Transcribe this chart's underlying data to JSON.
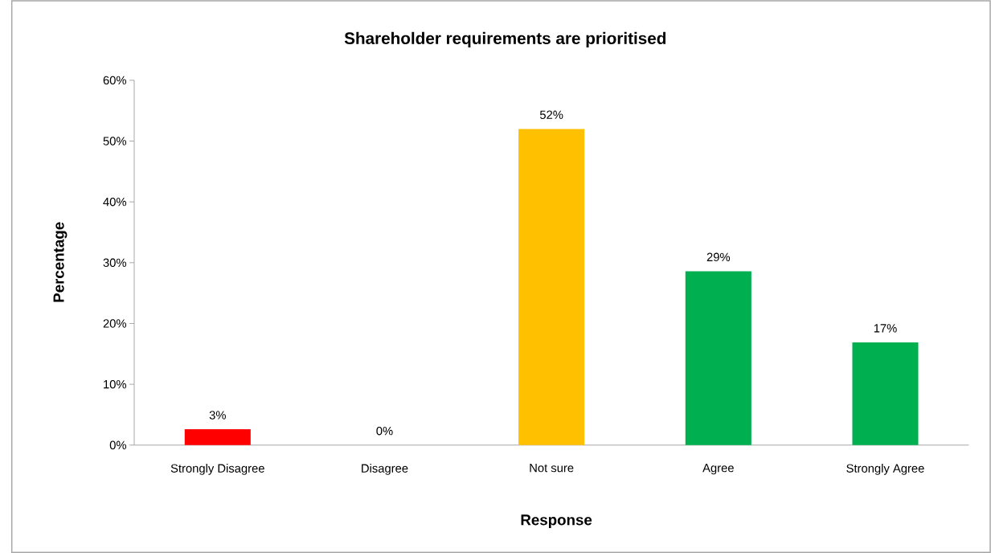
{
  "chart_data": {
    "type": "bar",
    "title": "Shareholder requirements are prioritised",
    "xlabel": "Response",
    "ylabel": "Percentage",
    "categories": [
      "Strongly Disagree",
      "Disagree",
      "Not sure",
      "Agree",
      "Strongly Agree"
    ],
    "values": [
      2.6,
      0,
      52,
      28.6,
      16.9
    ],
    "value_labels": [
      "3%",
      "0%",
      "52%",
      "29%",
      "17%"
    ],
    "colors": [
      "#ff0000",
      "#ff0000",
      "#ffc000",
      "#00b050",
      "#00b050"
    ],
    "ylim": [
      0,
      60
    ],
    "yticks": [
      {
        "value": 0,
        "label": "0%"
      },
      {
        "value": 10,
        "label": "10%"
      },
      {
        "value": 20,
        "label": "20%"
      },
      {
        "value": 30,
        "label": "30%"
      },
      {
        "value": 40,
        "label": "40%"
      },
      {
        "value": 50,
        "label": "50%"
      },
      {
        "value": 60,
        "label": "60%"
      }
    ]
  }
}
